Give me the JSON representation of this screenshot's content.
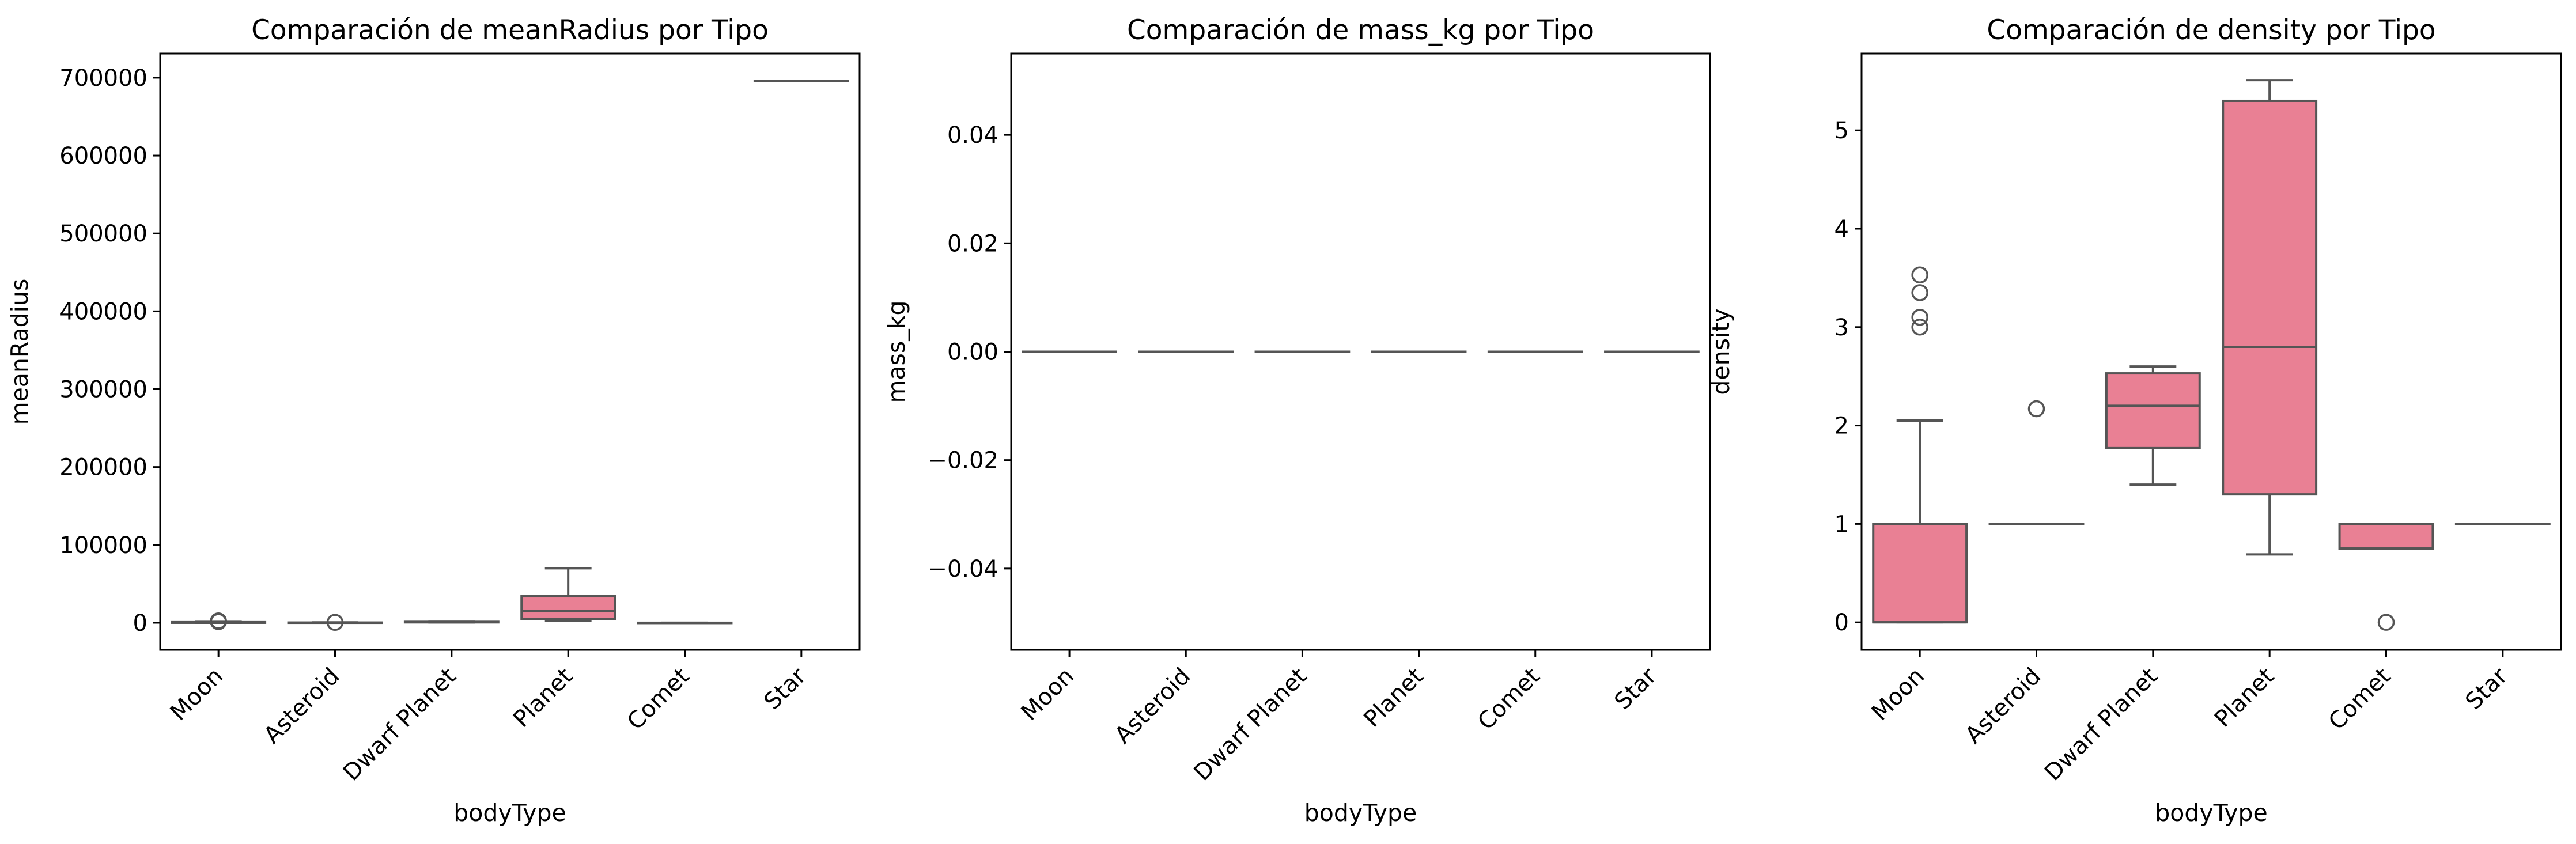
{
  "chart_data": [
    {
      "type": "box",
      "title": "Comparación de meanRadius por Tipo",
      "xlabel": "bodyType",
      "ylabel": "meanRadius",
      "categories": [
        "Moon",
        "Asteroid",
        "Dwarf Planet",
        "Planet",
        "Comet",
        "Star"
      ],
      "yticks": [
        {
          "value": 0,
          "label": "0"
        },
        {
          "value": 100000,
          "label": "100000"
        },
        {
          "value": 200000,
          "label": "200000"
        },
        {
          "value": 300000,
          "label": "300000"
        },
        {
          "value": 400000,
          "label": "400000"
        },
        {
          "value": 500000,
          "label": "500000"
        },
        {
          "value": 600000,
          "label": "600000"
        },
        {
          "value": 700000,
          "label": "700000"
        }
      ],
      "ylim": [
        -34800,
        731000
      ],
      "boxes": [
        {
          "category": "Moon",
          "q1": 0,
          "median": 500,
          "q3": 800,
          "whisker_low": 0,
          "whisker_high": 1200,
          "outliers": [
            1500,
            2400
          ]
        },
        {
          "category": "Asteroid",
          "q1": 0,
          "median": 100,
          "q3": 300,
          "whisker_low": 0,
          "whisker_high": 500,
          "outliers": [
            500
          ]
        },
        {
          "category": "Dwarf Planet",
          "q1": 500,
          "median": 800,
          "q3": 1200,
          "whisker_low": 400,
          "whisker_high": 1300,
          "outliers": []
        },
        {
          "category": "Planet",
          "q1": 5000,
          "median": 15000,
          "q3": 34000,
          "whisker_low": 2400,
          "whisker_high": 70000,
          "outliers": []
        },
        {
          "category": "Comet",
          "q1": 0,
          "median": 10,
          "q3": 20,
          "whisker_low": 0,
          "whisker_high": 30,
          "outliers": []
        },
        {
          "category": "Star",
          "q1": 696000,
          "median": 696000,
          "q3": 696000,
          "whisker_low": 696000,
          "whisker_high": 696000,
          "outliers": []
        }
      ]
    },
    {
      "type": "box",
      "title": "Comparación de mass_kg por Tipo",
      "xlabel": "bodyType",
      "ylabel": "mass_kg",
      "categories": [
        "Moon",
        "Asteroid",
        "Dwarf Planet",
        "Planet",
        "Comet",
        "Star"
      ],
      "yticks": [
        {
          "value": 0.04,
          "label": "0.04"
        },
        {
          "value": 0.02,
          "label": "0.02"
        },
        {
          "value": 0,
          "label": "0.00"
        },
        {
          "value": -0.02,
          "label": "−0.02"
        },
        {
          "value": -0.04,
          "label": "−0.04"
        }
      ],
      "ylim": [
        -0.055,
        0.055
      ],
      "boxes": [
        {
          "category": "Moon",
          "q1": 0,
          "median": 0,
          "q3": 0,
          "whisker_low": 0,
          "whisker_high": 0,
          "outliers": []
        },
        {
          "category": "Asteroid",
          "q1": 0,
          "median": 0,
          "q3": 0,
          "whisker_low": 0,
          "whisker_high": 0,
          "outliers": []
        },
        {
          "category": "Dwarf Planet",
          "q1": 0,
          "median": 0,
          "q3": 0,
          "whisker_low": 0,
          "whisker_high": 0,
          "outliers": []
        },
        {
          "category": "Planet",
          "q1": 0,
          "median": 0,
          "q3": 0,
          "whisker_low": 0,
          "whisker_high": 0,
          "outliers": []
        },
        {
          "category": "Comet",
          "q1": 0,
          "median": 0,
          "q3": 0,
          "whisker_low": 0,
          "whisker_high": 0,
          "outliers": []
        },
        {
          "category": "Star",
          "q1": 0,
          "median": 0,
          "q3": 0,
          "whisker_low": 0,
          "whisker_high": 0,
          "outliers": []
        }
      ]
    },
    {
      "type": "box",
      "title": "Comparación de density por Tipo",
      "xlabel": "bodyType",
      "ylabel": "density",
      "categories": [
        "Moon",
        "Asteroid",
        "Dwarf Planet",
        "Planet",
        "Comet",
        "Star"
      ],
      "yticks": [
        {
          "value": 0,
          "label": "0"
        },
        {
          "value": 1,
          "label": "1"
        },
        {
          "value": 2,
          "label": "2"
        },
        {
          "value": 3,
          "label": "3"
        },
        {
          "value": 4,
          "label": "4"
        },
        {
          "value": 5,
          "label": "5"
        }
      ],
      "ylim": [
        -0.28,
        5.78
      ],
      "boxes": [
        {
          "category": "Moon",
          "q1": 0,
          "median": 0,
          "q3": 1.0,
          "whisker_low": 0,
          "whisker_high": 2.05,
          "outliers": [
            3.0,
            3.1,
            3.35,
            3.53
          ]
        },
        {
          "category": "Asteroid",
          "q1": 1.0,
          "median": 1.0,
          "q3": 1.0,
          "whisker_low": 1.0,
          "whisker_high": 1.0,
          "outliers": [
            2.17
          ]
        },
        {
          "category": "Dwarf Planet",
          "q1": 1.77,
          "median": 2.2,
          "q3": 2.53,
          "whisker_low": 1.4,
          "whisker_high": 2.6,
          "outliers": []
        },
        {
          "category": "Planet",
          "q1": 1.3,
          "median": 2.8,
          "q3": 5.3,
          "whisker_low": 0.69,
          "whisker_high": 5.51,
          "outliers": []
        },
        {
          "category": "Comet",
          "q1": 0.75,
          "median": 0.75,
          "q3": 1.0,
          "whisker_low": 0.75,
          "whisker_high": 1.0,
          "outliers": [
            0.0
          ]
        },
        {
          "category": "Star",
          "q1": 1.0,
          "median": 1.0,
          "q3": 1.0,
          "whisker_low": 1.0,
          "whisker_high": 1.0,
          "outliers": []
        }
      ]
    }
  ],
  "colors": {
    "box_fill": "#E98094",
    "line": "#555555",
    "frame": "#000000",
    "background": "#ffffff"
  }
}
